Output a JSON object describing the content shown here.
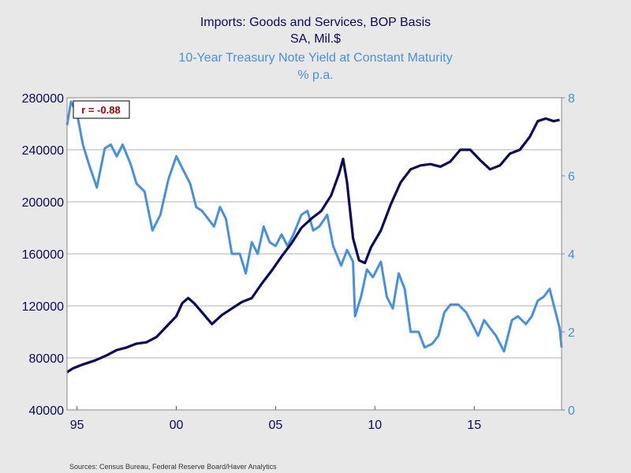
{
  "chart_data": {
    "type": "line",
    "title_left_1": "Imports: Goods and Services, BOP Basis",
    "title_left_2": "SA, Mil.$",
    "title_right_1": "10-Year Treasury Note Yield at Constant Maturity",
    "title_right_2": "% p.a.",
    "annotation": "r = -0.88",
    "source": "Sources:  Census Bureau, Federal Reserve Board/Haver Analytics",
    "left_axis": {
      "min": 40000,
      "max": 280000,
      "ticks": [
        40000,
        80000,
        120000,
        160000,
        200000,
        240000,
        280000
      ],
      "tick_labels": [
        "40000",
        "80000",
        "120000",
        "160000",
        "200000",
        "240000",
        "280000"
      ]
    },
    "right_axis": {
      "min": 0,
      "max": 8,
      "ticks": [
        0,
        2,
        4,
        6,
        8
      ],
      "tick_labels": [
        "0",
        "2",
        "4",
        "6",
        "8"
      ]
    },
    "x_axis": {
      "min": 1994.5,
      "max": 2019.4,
      "ticks": [
        1995,
        2000,
        2005,
        2010,
        2015
      ],
      "tick_labels": [
        "95",
        "00",
        "05",
        "10",
        "15"
      ]
    },
    "colors": {
      "imports": "#0a0a5a",
      "yield": "#4a90d9",
      "grid": "#b0b0b0",
      "plot_bg": "#ffffff",
      "annotation": "#a00000"
    },
    "series": [
      {
        "name": "Imports: Goods and Services, BOP Basis",
        "axis": "left",
        "points": [
          [
            1994.5,
            69000
          ],
          [
            1994.8,
            72000
          ],
          [
            1995.3,
            75000
          ],
          [
            1995.9,
            78000
          ],
          [
            1996.5,
            82000
          ],
          [
            1997.0,
            86000
          ],
          [
            1997.5,
            88000
          ],
          [
            1998.0,
            91000
          ],
          [
            1998.5,
            92000
          ],
          [
            1999.0,
            96000
          ],
          [
            1999.5,
            104000
          ],
          [
            2000.0,
            112000
          ],
          [
            2000.3,
            122000
          ],
          [
            2000.6,
            126000
          ],
          [
            2000.9,
            122000
          ],
          [
            2001.3,
            115000
          ],
          [
            2001.8,
            106000
          ],
          [
            2002.3,
            113000
          ],
          [
            2002.8,
            118000
          ],
          [
            2003.3,
            123000
          ],
          [
            2003.8,
            126000
          ],
          [
            2004.3,
            137000
          ],
          [
            2004.8,
            147000
          ],
          [
            2005.3,
            158000
          ],
          [
            2005.8,
            168000
          ],
          [
            2006.3,
            180000
          ],
          [
            2006.8,
            187000
          ],
          [
            2007.3,
            193000
          ],
          [
            2007.8,
            205000
          ],
          [
            2008.2,
            222000
          ],
          [
            2008.4,
            233000
          ],
          [
            2008.6,
            215000
          ],
          [
            2008.9,
            172000
          ],
          [
            2009.2,
            155000
          ],
          [
            2009.5,
            153000
          ],
          [
            2009.8,
            165000
          ],
          [
            2010.3,
            178000
          ],
          [
            2010.8,
            198000
          ],
          [
            2011.3,
            215000
          ],
          [
            2011.8,
            225000
          ],
          [
            2012.3,
            228000
          ],
          [
            2012.8,
            229000
          ],
          [
            2013.3,
            227000
          ],
          [
            2013.8,
            231000
          ],
          [
            2014.3,
            240000
          ],
          [
            2014.8,
            240000
          ],
          [
            2015.3,
            232000
          ],
          [
            2015.8,
            225000
          ],
          [
            2016.3,
            228000
          ],
          [
            2016.8,
            237000
          ],
          [
            2017.3,
            240000
          ],
          [
            2017.8,
            250000
          ],
          [
            2018.2,
            262000
          ],
          [
            2018.6,
            264000
          ],
          [
            2019.0,
            262000
          ],
          [
            2019.3,
            263000
          ]
        ]
      },
      {
        "name": "10-Year Treasury Note Yield at Constant Maturity",
        "axis": "right",
        "points": [
          [
            1994.5,
            7.3
          ],
          [
            1994.7,
            7.9
          ],
          [
            1995.0,
            7.6
          ],
          [
            1995.3,
            6.8
          ],
          [
            1995.6,
            6.3
          ],
          [
            1996.0,
            5.7
          ],
          [
            1996.4,
            6.7
          ],
          [
            1996.7,
            6.8
          ],
          [
            1997.0,
            6.5
          ],
          [
            1997.3,
            6.8
          ],
          [
            1997.7,
            6.3
          ],
          [
            1998.0,
            5.8
          ],
          [
            1998.4,
            5.6
          ],
          [
            1998.8,
            4.6
          ],
          [
            1999.2,
            5.0
          ],
          [
            1999.6,
            5.9
          ],
          [
            2000.0,
            6.5
          ],
          [
            2000.3,
            6.2
          ],
          [
            2000.7,
            5.8
          ],
          [
            2001.0,
            5.2
          ],
          [
            2001.3,
            5.1
          ],
          [
            2001.6,
            4.9
          ],
          [
            2001.9,
            4.7
          ],
          [
            2002.2,
            5.2
          ],
          [
            2002.5,
            4.9
          ],
          [
            2002.8,
            4.0
          ],
          [
            2003.2,
            4.0
          ],
          [
            2003.5,
            3.5
          ],
          [
            2003.8,
            4.3
          ],
          [
            2004.1,
            4.0
          ],
          [
            2004.4,
            4.7
          ],
          [
            2004.7,
            4.3
          ],
          [
            2005.0,
            4.2
          ],
          [
            2005.3,
            4.5
          ],
          [
            2005.6,
            4.2
          ],
          [
            2005.9,
            4.5
          ],
          [
            2006.3,
            5.0
          ],
          [
            2006.6,
            5.1
          ],
          [
            2006.9,
            4.6
          ],
          [
            2007.2,
            4.7
          ],
          [
            2007.6,
            5.0
          ],
          [
            2007.9,
            4.2
          ],
          [
            2008.3,
            3.7
          ],
          [
            2008.6,
            4.1
          ],
          [
            2008.9,
            3.8
          ],
          [
            2009.0,
            2.4
          ],
          [
            2009.3,
            2.9
          ],
          [
            2009.6,
            3.6
          ],
          [
            2009.9,
            3.4
          ],
          [
            2010.3,
            3.8
          ],
          [
            2010.6,
            2.9
          ],
          [
            2010.9,
            2.6
          ],
          [
            2011.2,
            3.5
          ],
          [
            2011.5,
            3.1
          ],
          [
            2011.8,
            2.0
          ],
          [
            2012.2,
            2.0
          ],
          [
            2012.5,
            1.6
          ],
          [
            2012.9,
            1.7
          ],
          [
            2013.2,
            1.9
          ],
          [
            2013.5,
            2.5
          ],
          [
            2013.8,
            2.7
          ],
          [
            2014.2,
            2.7
          ],
          [
            2014.6,
            2.5
          ],
          [
            2014.9,
            2.2
          ],
          [
            2015.2,
            1.9
          ],
          [
            2015.5,
            2.3
          ],
          [
            2015.8,
            2.1
          ],
          [
            2016.1,
            1.9
          ],
          [
            2016.5,
            1.5
          ],
          [
            2016.9,
            2.3
          ],
          [
            2017.2,
            2.4
          ],
          [
            2017.6,
            2.2
          ],
          [
            2017.9,
            2.4
          ],
          [
            2018.2,
            2.8
          ],
          [
            2018.5,
            2.9
          ],
          [
            2018.8,
            3.1
          ],
          [
            2019.0,
            2.7
          ],
          [
            2019.3,
            2.1
          ],
          [
            2019.4,
            1.6
          ]
        ]
      }
    ]
  }
}
